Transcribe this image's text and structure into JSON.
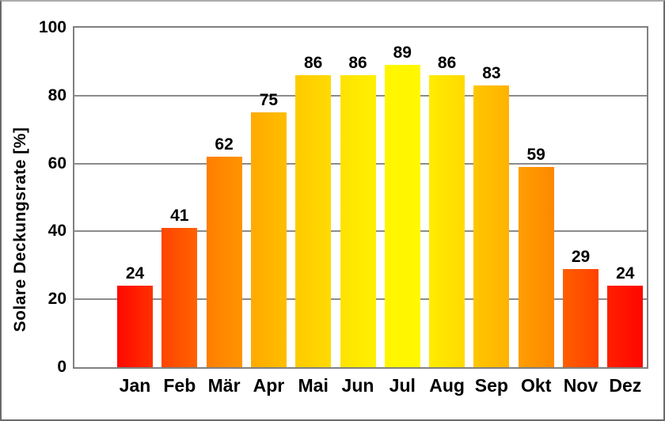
{
  "chart_data": {
    "type": "bar",
    "title": "",
    "ylabel": "Solare Deckungsrate [%]",
    "xlabel": "",
    "categories": [
      "Jan",
      "Feb",
      "Mär",
      "Apr",
      "Mai",
      "Jun",
      "Jul",
      "Aug",
      "Sep",
      "Okt",
      "Nov",
      "Dez"
    ],
    "values": [
      24,
      41,
      62,
      75,
      86,
      86,
      89,
      86,
      83,
      59,
      29,
      24
    ],
    "value_labels_shown": true,
    "ylim": [
      0,
      100
    ],
    "yticks": [
      0,
      20,
      40,
      60,
      80,
      100
    ],
    "grid": "horizontal",
    "legend": "none",
    "bar_gradients": [
      [
        "#ff0800",
        "#ff3000"
      ],
      [
        "#ff4400",
        "#ff6200"
      ],
      [
        "#ff7e00",
        "#ff9400"
      ],
      [
        "#ffaa00",
        "#ffbe00"
      ],
      [
        "#ffca00",
        "#ffda00"
      ],
      [
        "#ffe200",
        "#fff000"
      ],
      [
        "#fff500",
        "#fff800"
      ],
      [
        "#ffec00",
        "#ffda00"
      ],
      [
        "#ffc600",
        "#ffb200"
      ],
      [
        "#ff9e00",
        "#ff8800"
      ],
      [
        "#ff5e00",
        "#ff4200"
      ],
      [
        "#ff2000",
        "#ff0600"
      ]
    ],
    "colors": {
      "grid": "#8c8c8c",
      "plot_border": "#808080",
      "text": "#000000",
      "background": "#ffffff"
    }
  }
}
